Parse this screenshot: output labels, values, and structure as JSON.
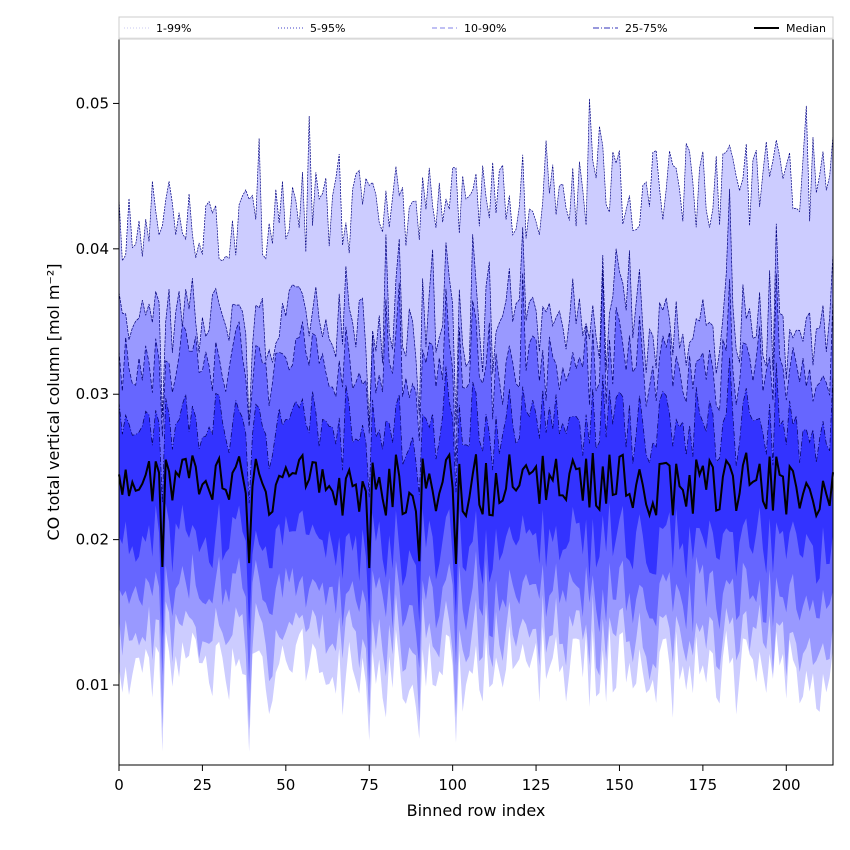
{
  "chart_data": {
    "type": "area",
    "title": "",
    "xlabel": "Binned row index",
    "ylabel": "CO total vertical column [mol m⁻²]",
    "xlim": [
      0,
      214
    ],
    "ylim": [
      0.0045,
      0.0545
    ],
    "x_ticks": [
      0,
      25,
      50,
      75,
      100,
      125,
      150,
      175,
      200
    ],
    "y_ticks": [
      0.01,
      0.02,
      0.03,
      0.04,
      0.05
    ],
    "x_tick_labels": [
      "0",
      "25",
      "50",
      "75",
      "100",
      "125",
      "150",
      "175",
      "200"
    ],
    "y_tick_labels": [
      "0.01",
      "0.02",
      "0.03",
      "0.04",
      "0.05"
    ],
    "n_rows": 215,
    "legend_position": "top, full width",
    "legend": [
      {
        "label": "1-99%",
        "color": "#c8c8f0",
        "style": "dotted"
      },
      {
        "label": "5-95%",
        "color": "#4040c8",
        "style": "dotted"
      },
      {
        "label": "10-90%",
        "color": "#8080e8",
        "style": "dashed"
      },
      {
        "label": "25-75%",
        "color": "#3030b8",
        "style": "dashdot"
      },
      {
        "label": "Median",
        "color": "#000000",
        "style": "solid"
      }
    ],
    "band_fill_colors": [
      "#ccccff",
      "#9999ff",
      "#6666ff",
      "#3333ff"
    ],
    "series": [
      {
        "name": "Median",
        "baseline": 0.0238,
        "amplitude": 0.0022,
        "annotations": "typical 0.021-0.027 with dips near 0.018 at rows 13, 39, 75, 90, 101"
      },
      {
        "name": "25-75%",
        "lower": 0.0205,
        "upper": 0.0285
      },
      {
        "name": "10-90%",
        "lower": 0.0165,
        "upper": 0.0315
      },
      {
        "name": "5-95%",
        "lower": 0.0135,
        "upper": 0.034
      },
      {
        "name": "1-99%",
        "lower": 0.0115,
        "upper": 0.0435
      }
    ]
  }
}
